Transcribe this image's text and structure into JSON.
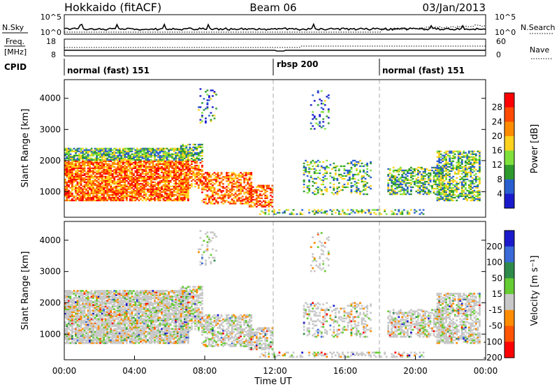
{
  "header": {
    "station": "Hokkaido (fitACF)",
    "beam": "Beam 06",
    "date": "03/Jan/2013"
  },
  "chart_data": [
    {
      "type": "line",
      "panel": "nsky-nsearch",
      "left_label": "N.Sky",
      "right_label": "N.Search",
      "left_ticks": [
        "10^5",
        "10^0"
      ],
      "right_ticks": [
        "10^5",
        "10^0"
      ]
    },
    {
      "type": "line",
      "panel": "freq-nave",
      "left_label_top": "Freq.",
      "left_label_bottom": "[MHz]",
      "right_label": "Nave",
      "left_ticks": [
        "18",
        "8"
      ],
      "right_ticks": [
        "60",
        "0"
      ]
    },
    {
      "type": "table",
      "panel": "cpid",
      "label": "CPID",
      "segments": [
        {
          "name": "normal (fast) 151",
          "start_hour": 0,
          "end_hour": 12
        },
        {
          "name": "rbsp 200",
          "start_hour": 12,
          "end_hour": 18
        },
        {
          "name": "normal (fast) 151",
          "start_hour": 18,
          "end_hour": 24
        }
      ]
    },
    {
      "type": "heatmap",
      "panel": "power",
      "ylabel": "Slant Range [km]",
      "ylim": [
        180,
        4600
      ],
      "yticks": [
        "4000",
        "3000",
        "2000",
        "1000"
      ],
      "colorbar_label": "Power [dB]",
      "colorbar_ticks": [
        "28",
        "24",
        "20",
        "16",
        "12",
        "8",
        "4"
      ],
      "colorbar_colors": [
        "#ff0000",
        "#ff4a00",
        "#ff8c00",
        "#ffd21e",
        "#7fe03c",
        "#2e9a2e",
        "#2a5fd0",
        "#1a1acc"
      ]
    },
    {
      "type": "heatmap",
      "panel": "velocity",
      "ylabel": "Slant Range [km]",
      "ylim": [
        180,
        4600
      ],
      "yticks": [
        "4000",
        "3000",
        "2000",
        "1000"
      ],
      "xlabel": "Time UT",
      "xticks": [
        "00:00",
        "04:00",
        "08:00",
        "12:00",
        "16:00",
        "20:00",
        "00:00"
      ],
      "colorbar_label": "Velocity [m s⁻¹]",
      "colorbar_ticks": [
        "200",
        "100",
        "50",
        "15",
        "-15",
        "-50",
        "-100",
        "-200"
      ],
      "colorbar_colors": [
        "#1a1acc",
        "#3a6ad8",
        "#2e8a4a",
        "#66cc33",
        "#c8c8c8",
        "#ff8c00",
        "#ff5500",
        "#ff0000"
      ]
    }
  ]
}
